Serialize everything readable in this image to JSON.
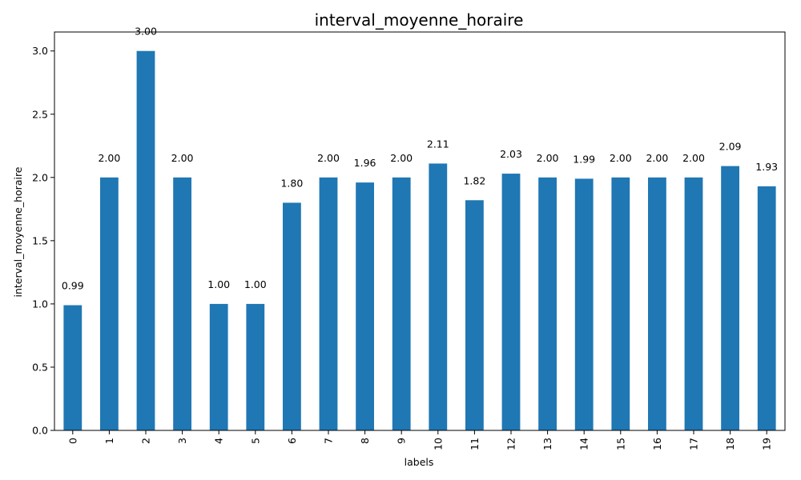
{
  "chart_data": {
    "type": "bar",
    "title": "interval_moyenne_horaire",
    "xlabel": "labels",
    "ylabel": "interval_moyenne_horaire",
    "categories": [
      "0",
      "1",
      "2",
      "3",
      "4",
      "5",
      "6",
      "7",
      "8",
      "9",
      "10",
      "11",
      "12",
      "13",
      "14",
      "15",
      "16",
      "17",
      "18",
      "19"
    ],
    "values": [
      0.99,
      2.0,
      3.0,
      2.0,
      1.0,
      1.0,
      1.8,
      2.0,
      1.96,
      2.0,
      2.11,
      1.82,
      2.03,
      2.0,
      1.99,
      2.0,
      2.0,
      2.0,
      2.09,
      1.93
    ],
    "data_labels": [
      "0.99",
      "2.00",
      "3.00",
      "2.00",
      "1.00",
      "1.00",
      "1.80",
      "2.00",
      "1.96",
      "2.00",
      "2.11",
      "1.82",
      "2.03",
      "2.00",
      "1.99",
      "2.00",
      "2.00",
      "2.00",
      "2.09",
      "1.93"
    ],
    "yticks": [
      "0.0",
      "0.5",
      "1.0",
      "1.5",
      "2.0",
      "2.5",
      "3.0"
    ],
    "ylim": [
      0,
      3.15
    ],
    "grid": false,
    "legend": "none",
    "bar_color": "#1f77b4"
  }
}
